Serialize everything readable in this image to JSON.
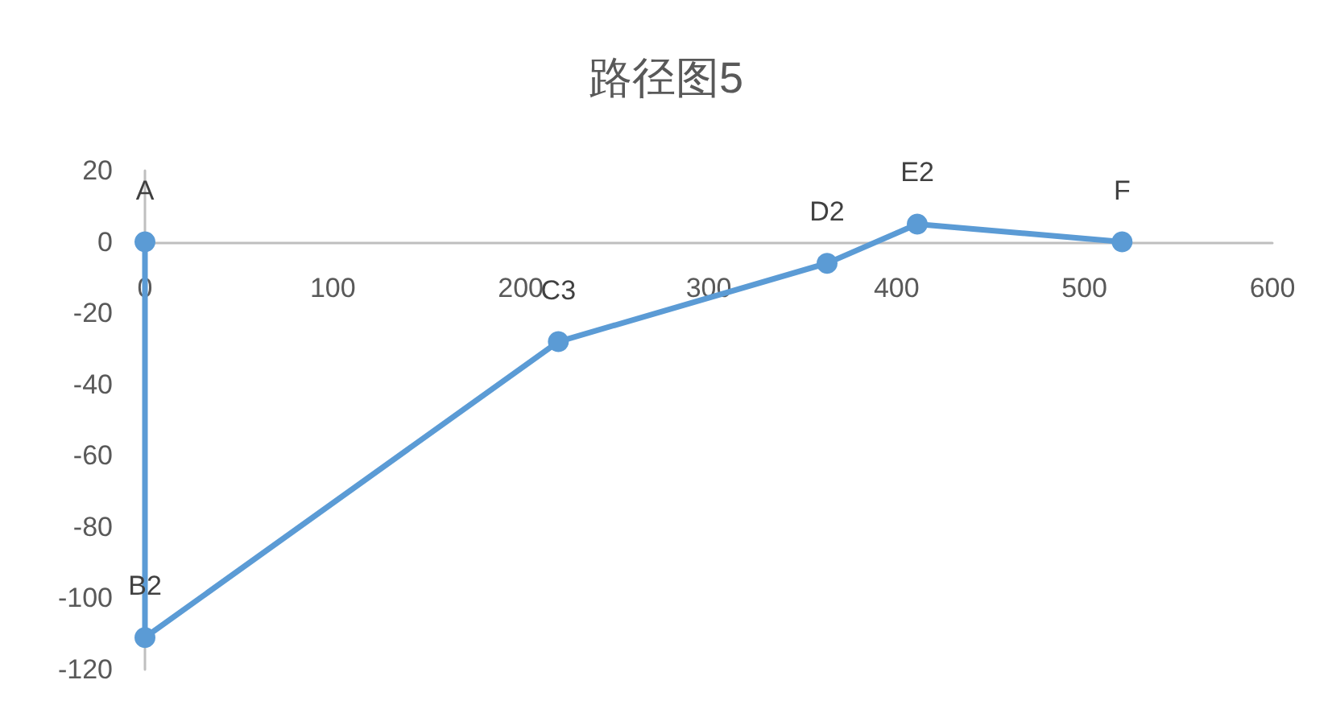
{
  "chart_data": {
    "type": "line",
    "title": "路径图5",
    "x": [
      0,
      0,
      220,
      363,
      411,
      520
    ],
    "series": [
      {
        "color": "#5b9bd5",
        "values": [
          0,
          -111,
          -28,
          -6,
          5,
          0
        ]
      }
    ],
    "xlim": [
      0,
      600
    ],
    "xticks": [
      0,
      100,
      200,
      300,
      400,
      500,
      600
    ],
    "ylim": [
      -120,
      20
    ],
    "yticks": [
      -120,
      -100,
      -80,
      -60,
      -40,
      -20,
      0,
      20
    ],
    "marker": "circle",
    "line_style": "solid",
    "annotations": [
      {
        "text": "A",
        "x": 0,
        "y": 0
      },
      {
        "text": "B2",
        "x": 0,
        "y": -111
      },
      {
        "text": "C3",
        "x": 220,
        "y": -28
      },
      {
        "text": "D2",
        "x": 363,
        "y": -6
      },
      {
        "text": "E2",
        "x": 411,
        "y": 5
      },
      {
        "text": "F",
        "x": 520,
        "y": 0
      }
    ]
  }
}
